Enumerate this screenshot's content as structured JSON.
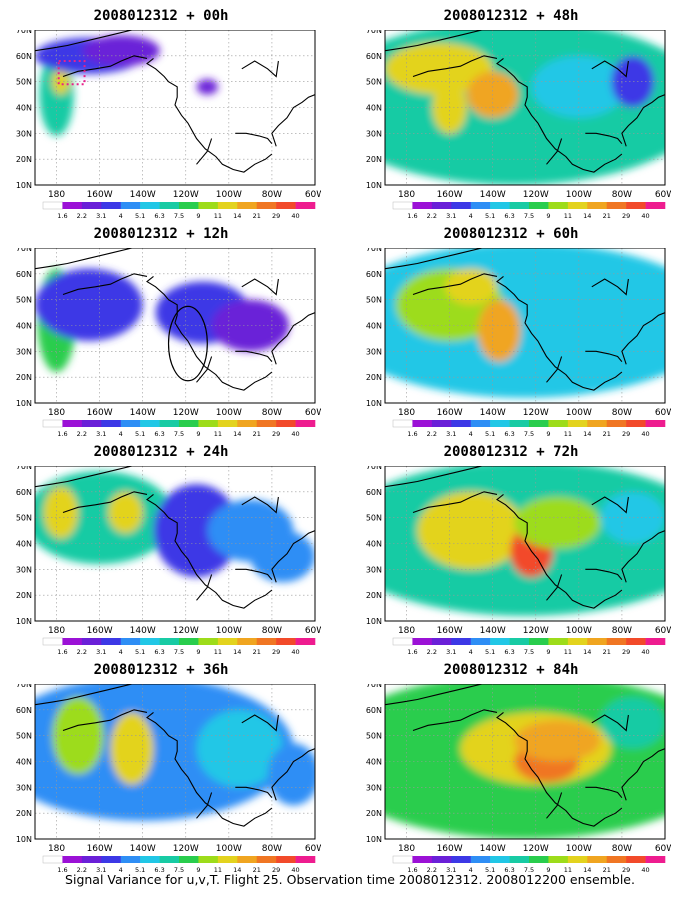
{
  "figure": {
    "caption": "Signal Variance for u,v,T. Flight 25. Observation time 2008012312. 2008012200 ensemble."
  },
  "colors": {
    "scale": [
      "#ffffff",
      "#9b11d6",
      "#6a20d8",
      "#3c38e6",
      "#2e8ef5",
      "#21c7e6",
      "#18cba4",
      "#29cd4d",
      "#9ddc1a",
      "#e3d31e",
      "#f0a520",
      "#f07623",
      "#f24a2a",
      "#ee1c8f"
    ],
    "levels": [
      "1.6",
      "2.2",
      "3.1",
      "4",
      "5.1",
      "6.3",
      "7.5",
      "9",
      "11",
      "14",
      "21",
      "29",
      "40"
    ]
  },
  "axes": {
    "lon_ticks": [
      "180",
      "160W",
      "140W",
      "120W",
      "100W",
      "80W",
      "60W"
    ],
    "lat_ticks": [
      "10N",
      "20N",
      "30N",
      "40N",
      "50N",
      "60N",
      "70N"
    ],
    "extent": {
      "lon": [
        170,
        300
      ],
      "lat": [
        10,
        70
      ]
    }
  },
  "panels": [
    {
      "id": "p00",
      "title": "2008012312 + 00h",
      "col": 0,
      "row": 0,
      "blobs": [
        {
          "lon": 180,
          "lat": 45,
          "rx": 8,
          "ry": 16,
          "v": 6
        },
        {
          "lon": 182,
          "lat": 50,
          "rx": 4,
          "ry": 5,
          "v": 9
        },
        {
          "lon": 195,
          "lat": 60,
          "rx": 25,
          "ry": 7,
          "v": 3
        },
        {
          "lon": 210,
          "lat": 62,
          "rx": 18,
          "ry": 6,
          "v": 2
        },
        {
          "lon": 250,
          "lat": 48,
          "rx": 5,
          "ry": 3,
          "v": 2
        }
      ],
      "marker": {
        "type": "dotted-box",
        "lon": [
          181,
          193
        ],
        "lat": [
          49,
          58
        ]
      }
    },
    {
      "id": "p48",
      "title": "2008012312 + 48h",
      "col": 1,
      "row": 0,
      "blobs": [
        {
          "lon": 230,
          "lat": 42,
          "rx": 90,
          "ry": 32,
          "v": 6
        },
        {
          "lon": 195,
          "lat": 55,
          "rx": 25,
          "ry": 10,
          "v": 9
        },
        {
          "lon": 220,
          "lat": 45,
          "rx": 12,
          "ry": 9,
          "v": 10
        },
        {
          "lon": 200,
          "lat": 40,
          "rx": 8,
          "ry": 10,
          "v": 9
        },
        {
          "lon": 260,
          "lat": 48,
          "rx": 22,
          "ry": 12,
          "v": 5
        },
        {
          "lon": 285,
          "lat": 50,
          "rx": 10,
          "ry": 10,
          "v": 3
        }
      ]
    },
    {
      "id": "p12",
      "title": "2008012312 + 12h",
      "col": 0,
      "row": 1,
      "blobs": [
        {
          "lon": 180,
          "lat": 42,
          "rx": 9,
          "ry": 20,
          "v": 7
        },
        {
          "lon": 182,
          "lat": 55,
          "rx": 5,
          "ry": 4,
          "v": 9
        },
        {
          "lon": 205,
          "lat": 52,
          "rx": 12,
          "ry": 7,
          "v": 9
        },
        {
          "lon": 195,
          "lat": 48,
          "rx": 25,
          "ry": 14,
          "v": 3
        },
        {
          "lon": 248,
          "lat": 45,
          "rx": 22,
          "ry": 12,
          "v": 3
        },
        {
          "lon": 270,
          "lat": 40,
          "rx": 18,
          "ry": 10,
          "v": 2
        }
      ],
      "marker": {
        "type": "circle",
        "lon": 241,
        "lat": 33,
        "rx": 9,
        "ry": 9
      }
    },
    {
      "id": "p60",
      "title": "2008012312 + 60h",
      "col": 1,
      "row": 1,
      "blobs": [
        {
          "lon": 235,
          "lat": 42,
          "rx": 90,
          "ry": 30,
          "v": 5
        },
        {
          "lon": 200,
          "lat": 48,
          "rx": 25,
          "ry": 14,
          "v": 8
        },
        {
          "lon": 223,
          "lat": 38,
          "rx": 10,
          "ry": 12,
          "v": 10
        },
        {
          "lon": 210,
          "lat": 55,
          "rx": 12,
          "ry": 7,
          "v": 9
        },
        {
          "lon": 265,
          "lat": 40,
          "rx": 25,
          "ry": 12,
          "v": 5
        }
      ]
    },
    {
      "id": "p24",
      "title": "2008012312 + 24h",
      "col": 0,
      "row": 2,
      "blobs": [
        {
          "lon": 200,
          "lat": 50,
          "rx": 35,
          "ry": 18,
          "v": 6
        },
        {
          "lon": 182,
          "lat": 52,
          "rx": 8,
          "ry": 10,
          "v": 9
        },
        {
          "lon": 212,
          "lat": 52,
          "rx": 8,
          "ry": 8,
          "v": 9
        },
        {
          "lon": 245,
          "lat": 45,
          "rx": 20,
          "ry": 18,
          "v": 3
        },
        {
          "lon": 270,
          "lat": 45,
          "rx": 20,
          "ry": 12,
          "v": 4
        },
        {
          "lon": 285,
          "lat": 35,
          "rx": 15,
          "ry": 10,
          "v": 4
        }
      ]
    },
    {
      "id": "p72",
      "title": "2008012312 + 72h",
      "col": 1,
      "row": 2,
      "blobs": [
        {
          "lon": 235,
          "lat": 42,
          "rx": 90,
          "ry": 30,
          "v": 6
        },
        {
          "lon": 210,
          "lat": 45,
          "rx": 25,
          "ry": 15,
          "v": 9
        },
        {
          "lon": 238,
          "lat": 37,
          "rx": 10,
          "ry": 10,
          "v": 12
        },
        {
          "lon": 250,
          "lat": 48,
          "rx": 20,
          "ry": 10,
          "v": 8
        },
        {
          "lon": 285,
          "lat": 50,
          "rx": 15,
          "ry": 10,
          "v": 5
        }
      ]
    },
    {
      "id": "p36",
      "title": "2008012312 + 36h",
      "col": 0,
      "row": 3,
      "blobs": [
        {
          "lon": 220,
          "lat": 45,
          "rx": 70,
          "ry": 28,
          "v": 4
        },
        {
          "lon": 190,
          "lat": 50,
          "rx": 12,
          "ry": 15,
          "v": 8
        },
        {
          "lon": 215,
          "lat": 45,
          "rx": 10,
          "ry": 14,
          "v": 9
        },
        {
          "lon": 265,
          "lat": 45,
          "rx": 20,
          "ry": 15,
          "v": 5
        },
        {
          "lon": 290,
          "lat": 35,
          "rx": 12,
          "ry": 12,
          "v": 4
        }
      ]
    },
    {
      "id": "p84",
      "title": "2008012312 + 84h",
      "col": 1,
      "row": 3,
      "blobs": [
        {
          "lon": 235,
          "lat": 42,
          "rx": 95,
          "ry": 32,
          "v": 7
        },
        {
          "lon": 240,
          "lat": 45,
          "rx": 35,
          "ry": 14,
          "v": 9
        },
        {
          "lon": 245,
          "lat": 40,
          "rx": 15,
          "ry": 8,
          "v": 11
        },
        {
          "lon": 250,
          "lat": 48,
          "rx": 20,
          "ry": 8,
          "v": 10
        },
        {
          "lon": 285,
          "lat": 55,
          "rx": 15,
          "ry": 10,
          "v": 6
        }
      ]
    }
  ]
}
